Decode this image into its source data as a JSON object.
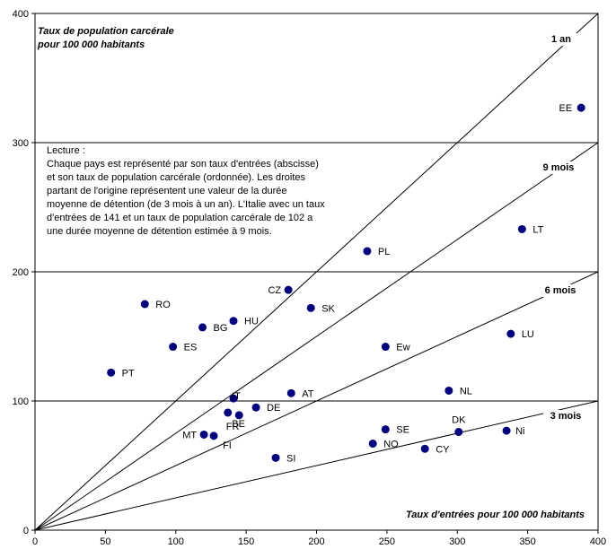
{
  "chart_data": {
    "type": "scatter",
    "xlabel": "Taux d'entrées pour 100 000 habitants",
    "ylabel_lines": [
      "Taux de population carcérale",
      "pour 100 000 habitants"
    ],
    "xlim": [
      0,
      400
    ],
    "ylim": [
      0,
      400
    ],
    "x_ticks": [
      0,
      50,
      100,
      150,
      200,
      250,
      300,
      350,
      400
    ],
    "y_ticks": [
      0,
      100,
      200,
      300,
      400
    ],
    "grid": "horizontal",
    "point_color": "#000080",
    "points": [
      {
        "label": "EE",
        "x": 388,
        "y": 327
      },
      {
        "label": "LT",
        "x": 346,
        "y": 233
      },
      {
        "label": "PL",
        "x": 236,
        "y": 216
      },
      {
        "label": "CZ",
        "x": 180,
        "y": 186
      },
      {
        "label": "SK",
        "x": 196,
        "y": 172
      },
      {
        "label": "RO",
        "x": 78,
        "y": 175
      },
      {
        "label": "HU",
        "x": 141,
        "y": 162
      },
      {
        "label": "BG",
        "x": 119,
        "y": 157
      },
      {
        "label": "LU",
        "x": 338,
        "y": 152
      },
      {
        "label": "ES",
        "x": 98,
        "y": 142
      },
      {
        "label": "Ew",
        "x": 249,
        "y": 142
      },
      {
        "label": "PT",
        "x": 54,
        "y": 122
      },
      {
        "label": "NL",
        "x": 294,
        "y": 108
      },
      {
        "label": "AT",
        "x": 182,
        "y": 106
      },
      {
        "label": "IT",
        "x": 141,
        "y": 102
      },
      {
        "label": "DE",
        "x": 157,
        "y": 95
      },
      {
        "label": "FR",
        "x": 137,
        "y": 91
      },
      {
        "label": "BE",
        "x": 145,
        "y": 89
      },
      {
        "label": "SE",
        "x": 249,
        "y": 78
      },
      {
        "label": "Ni",
        "x": 335,
        "y": 77
      },
      {
        "label": "DK",
        "x": 301,
        "y": 76
      },
      {
        "label": "MT",
        "x": 120,
        "y": 74
      },
      {
        "label": "FI",
        "x": 127,
        "y": 73
      },
      {
        "label": "NO",
        "x": 240,
        "y": 67
      },
      {
        "label": "CY",
        "x": 277,
        "y": 63
      },
      {
        "label": "SI",
        "x": 171,
        "y": 56
      }
    ],
    "reference_lines": [
      {
        "label": "1 an",
        "slope": 1.0
      },
      {
        "label": "9 mois",
        "slope": 0.75
      },
      {
        "label": "6 mois",
        "slope": 0.5
      },
      {
        "label": "3 mois",
        "slope": 0.25
      }
    ]
  },
  "note": {
    "title": "Lecture :",
    "text": "Chaque pays est représenté par son taux d'entrées (abscisse) et son taux de population carcérale (ordonnée). Les droites partant de l'origine représentent une valeur de la durée moyenne de détention (de 3 mois à un an). L'Italie avec un taux d'entrées de 141 et un taux de population carcérale de 102 a une durée moyenne de détention estimée à 9 mois."
  }
}
